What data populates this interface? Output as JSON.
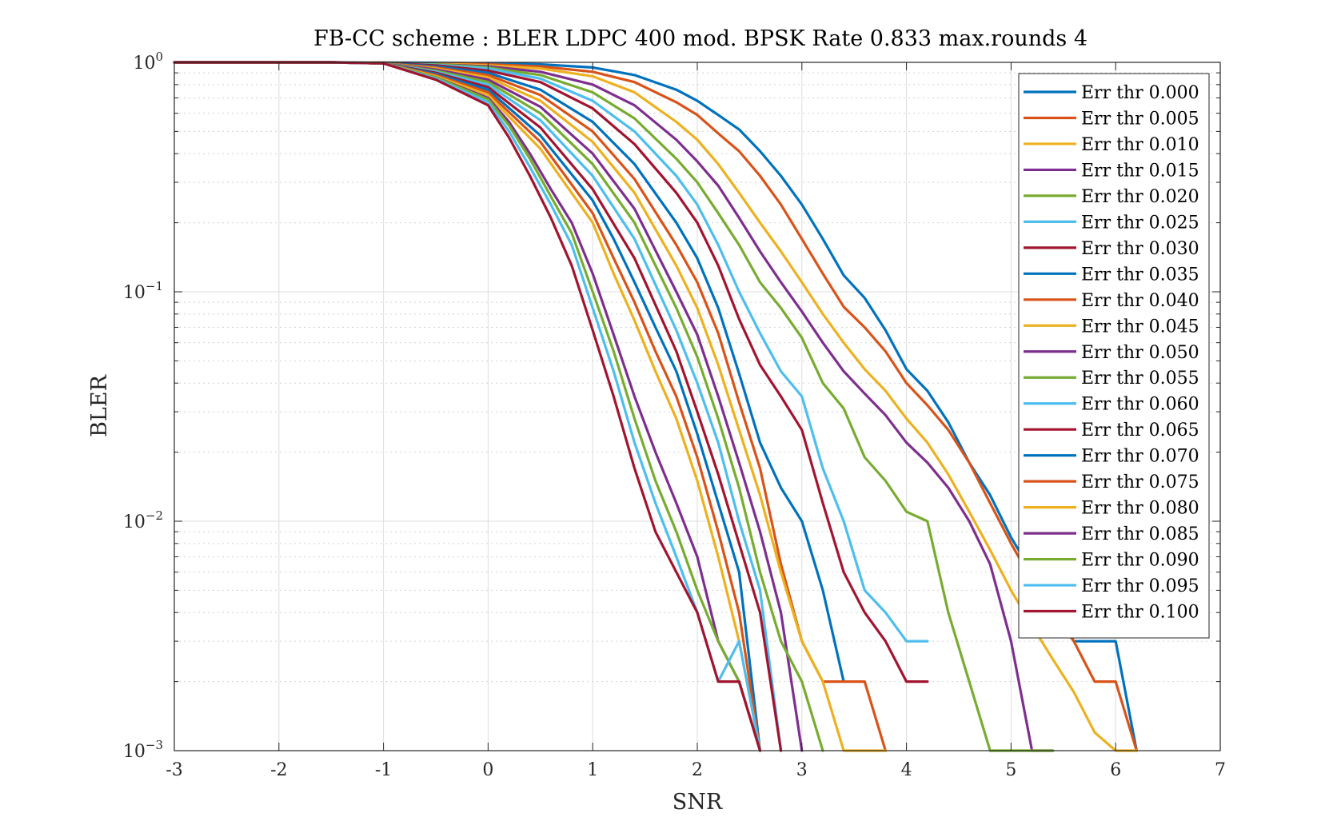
{
  "chart_data": {
    "type": "line",
    "title": "FB-CC scheme : BLER LDPC 400 mod. BPSK Rate 0.833 max.rounds 4",
    "xlabel": "SNR",
    "ylabel": "BLER",
    "xlim": [
      -3,
      7
    ],
    "ylim": [
      0.001,
      1
    ],
    "yscale": "log",
    "grid": true,
    "legend_position": "top-right",
    "x_ticks": [
      {
        "value": -3,
        "label": "-3"
      },
      {
        "value": -2,
        "label": "-2"
      },
      {
        "value": -1,
        "label": "-1"
      },
      {
        "value": 0,
        "label": "0"
      },
      {
        "value": 1,
        "label": "1"
      },
      {
        "value": 2,
        "label": "2"
      },
      {
        "value": 3,
        "label": "3"
      },
      {
        "value": 4,
        "label": "4"
      },
      {
        "value": 5,
        "label": "5"
      },
      {
        "value": 6,
        "label": "6"
      },
      {
        "value": 7,
        "label": "7"
      }
    ],
    "y_ticks": [
      {
        "value": 1,
        "base": "10",
        "exp": "0"
      },
      {
        "value": 0.1,
        "base": "10",
        "exp": "−1"
      },
      {
        "value": 0.01,
        "base": "10",
        "exp": "−2"
      },
      {
        "value": 0.001,
        "base": "10",
        "exp": "−3"
      }
    ],
    "series": [
      {
        "name": "Err thr 0.000",
        "color": "#0072BD",
        "x": [
          -3,
          -2,
          -1.5,
          -1,
          -0.5,
          0,
          0.5,
          1,
          1.4,
          1.8,
          2,
          2.2,
          2.4,
          2.6,
          2.8,
          3,
          3.2,
          3.4,
          3.6,
          3.8,
          4,
          4.2,
          4.4,
          4.6,
          4.8,
          5,
          5.2,
          5.4,
          5.6,
          5.8,
          6,
          6.2
        ],
        "y": [
          1,
          1,
          1,
          0.998,
          0.995,
          0.99,
          0.98,
          0.95,
          0.88,
          0.76,
          0.68,
          0.59,
          0.51,
          0.41,
          0.32,
          0.24,
          0.17,
          0.118,
          0.094,
          0.068,
          0.046,
          0.037,
          0.027,
          0.018,
          0.013,
          0.0085,
          0.006,
          0.0042,
          0.003,
          0.003,
          0.003,
          0.001
        ]
      },
      {
        "name": "Err thr 0.005",
        "color": "#D95319",
        "x": [
          -3,
          -2,
          -1.5,
          -1,
          -0.5,
          0,
          0.5,
          1,
          1.4,
          1.8,
          2,
          2.2,
          2.4,
          2.6,
          2.8,
          3,
          3.2,
          3.4,
          3.6,
          3.8,
          4,
          4.2,
          4.4,
          4.6,
          4.8,
          5,
          5.2,
          5.4,
          5.6,
          5.8,
          6,
          6.2
        ],
        "y": [
          1,
          1,
          1,
          0.997,
          0.99,
          0.98,
          0.96,
          0.91,
          0.82,
          0.67,
          0.59,
          0.49,
          0.41,
          0.32,
          0.24,
          0.17,
          0.12,
          0.086,
          0.07,
          0.055,
          0.04,
          0.032,
          0.025,
          0.018,
          0.012,
          0.008,
          0.0055,
          0.004,
          0.003,
          0.002,
          0.002,
          0.001
        ]
      },
      {
        "name": "Err thr 0.010",
        "color": "#EDB120",
        "x": [
          -3,
          -2,
          -1.5,
          -1,
          -0.5,
          0,
          0.5,
          1,
          1.4,
          1.8,
          2,
          2.2,
          2.4,
          2.6,
          2.8,
          3,
          3.2,
          3.4,
          3.6,
          3.8,
          4,
          4.2,
          4.4,
          4.6,
          4.8,
          5,
          5.2,
          5.4,
          5.6,
          5.8,
          6,
          6.2
        ],
        "y": [
          1,
          1,
          1,
          0.996,
          0.985,
          0.97,
          0.94,
          0.87,
          0.74,
          0.55,
          0.46,
          0.36,
          0.27,
          0.2,
          0.15,
          0.11,
          0.08,
          0.06,
          0.046,
          0.037,
          0.028,
          0.022,
          0.016,
          0.011,
          0.0075,
          0.005,
          0.0035,
          0.0025,
          0.0018,
          0.0012,
          0.001,
          0.001
        ]
      },
      {
        "name": "Err thr 0.015",
        "color": "#7E2F8E",
        "x": [
          -3,
          -2,
          -1.5,
          -1,
          -0.5,
          0,
          0.5,
          1,
          1.4,
          1.8,
          2,
          2.2,
          2.4,
          2.6,
          2.8,
          3,
          3.2,
          3.4,
          3.6,
          3.8,
          4,
          4.2,
          4.4,
          4.6,
          4.8,
          5,
          5.2,
          5.4
        ],
        "y": [
          1,
          1,
          1,
          0.995,
          0.98,
          0.96,
          0.91,
          0.8,
          0.65,
          0.46,
          0.37,
          0.29,
          0.21,
          0.15,
          0.11,
          0.082,
          0.06,
          0.045,
          0.036,
          0.029,
          0.022,
          0.018,
          0.014,
          0.01,
          0.0065,
          0.003,
          0.001,
          0.001
        ]
      },
      {
        "name": "Err thr 0.020",
        "color": "#77AC30",
        "x": [
          -3,
          -2,
          -1.5,
          -1,
          -0.5,
          0,
          0.5,
          1,
          1.4,
          1.8,
          2,
          2.2,
          2.4,
          2.6,
          2.8,
          3,
          3.2,
          3.4,
          3.6,
          3.8,
          4,
          4.2,
          4.4,
          4.6,
          4.8,
          5,
          5.2,
          5.4
        ],
        "y": [
          1,
          1,
          1,
          0.995,
          0.98,
          0.95,
          0.88,
          0.74,
          0.57,
          0.38,
          0.3,
          0.22,
          0.16,
          0.11,
          0.085,
          0.063,
          0.04,
          0.031,
          0.019,
          0.015,
          0.011,
          0.01,
          0.004,
          0.002,
          0.001,
          0.001,
          0.001,
          0.001
        ]
      },
      {
        "name": "Err thr 0.025",
        "color": "#4DBEEE",
        "x": [
          -3,
          -2,
          -1.5,
          -1,
          -0.5,
          0,
          0.5,
          1,
          1.4,
          1.8,
          2,
          2.2,
          2.4,
          2.6,
          2.8,
          3,
          3.2,
          3.4,
          3.6,
          3.8,
          4,
          4.2
        ],
        "y": [
          1,
          1,
          1,
          0.994,
          0.975,
          0.94,
          0.85,
          0.68,
          0.5,
          0.32,
          0.24,
          0.16,
          0.1,
          0.066,
          0.045,
          0.035,
          0.017,
          0.01,
          0.005,
          0.004,
          0.003,
          0.003
        ]
      },
      {
        "name": "Err thr 0.030",
        "color": "#A2142F",
        "x": [
          -3,
          -2,
          -1.5,
          -1,
          -0.5,
          0,
          0.5,
          1,
          1.4,
          1.8,
          2,
          2.2,
          2.4,
          2.6,
          2.8,
          3,
          3.2,
          3.4,
          3.6,
          3.8,
          4,
          4.2
        ],
        "y": [
          1,
          1,
          1,
          0.993,
          0.97,
          0.92,
          0.82,
          0.63,
          0.44,
          0.27,
          0.2,
          0.13,
          0.076,
          0.048,
          0.035,
          0.025,
          0.012,
          0.006,
          0.004,
          0.003,
          0.002,
          0.002
        ]
      },
      {
        "name": "Err thr 0.035",
        "color": "#0072BD",
        "x": [
          -3,
          -2,
          -1.5,
          -1,
          -0.5,
          0,
          0.5,
          1,
          1.4,
          1.8,
          2,
          2.2,
          2.4,
          2.6,
          2.8,
          3,
          3.2,
          3.4
        ],
        "y": [
          1,
          1,
          1,
          0.992,
          0.96,
          0.9,
          0.76,
          0.55,
          0.36,
          0.2,
          0.14,
          0.085,
          0.044,
          0.022,
          0.014,
          0.01,
          0.005,
          0.002
        ]
      },
      {
        "name": "Err thr 0.040",
        "color": "#D95319",
        "x": [
          -3,
          -2,
          -1.5,
          -1,
          -0.5,
          0,
          0.5,
          1,
          1.4,
          1.8,
          2,
          2.2,
          2.4,
          2.6,
          2.8,
          3,
          3.2,
          3.4,
          3.6,
          3.8
        ],
        "y": [
          1,
          1,
          1,
          0.99,
          0.95,
          0.88,
          0.72,
          0.5,
          0.31,
          0.16,
          0.11,
          0.066,
          0.033,
          0.017,
          0.0065,
          0.003,
          0.002,
          0.002,
          0.002,
          0.001
        ]
      },
      {
        "name": "Err thr 0.045",
        "color": "#EDB120",
        "x": [
          -3,
          -2,
          -1.5,
          -1,
          -0.5,
          0,
          0.5,
          1,
          1.4,
          1.8,
          2,
          2.2,
          2.4,
          2.6,
          2.8,
          3,
          3.2,
          3.4,
          3.6,
          3.8
        ],
        "y": [
          1,
          1,
          1,
          0.99,
          0.94,
          0.86,
          0.68,
          0.45,
          0.27,
          0.13,
          0.085,
          0.048,
          0.025,
          0.013,
          0.006,
          0.003,
          0.002,
          0.001,
          0.001,
          0.001
        ]
      },
      {
        "name": "Err thr 0.050",
        "color": "#7E2F8E",
        "x": [
          -3,
          -2,
          -1.5,
          -1,
          -0.5,
          0,
          0.5,
          1,
          1.4,
          1.8,
          2,
          2.2,
          2.4,
          2.6,
          2.8,
          3
        ],
        "y": [
          1,
          1,
          1,
          0.99,
          0.93,
          0.84,
          0.64,
          0.4,
          0.23,
          0.1,
          0.065,
          0.035,
          0.018,
          0.009,
          0.004,
          0.001
        ]
      },
      {
        "name": "Err thr 0.055",
        "color": "#77AC30",
        "x": [
          -3,
          -2,
          -1.5,
          -1,
          -0.5,
          0,
          0.5,
          1,
          1.4,
          1.8,
          2,
          2.2,
          2.4,
          2.6,
          2.8,
          3,
          3.2
        ],
        "y": [
          1,
          1,
          1,
          0.99,
          0.92,
          0.82,
          0.6,
          0.36,
          0.2,
          0.085,
          0.052,
          0.028,
          0.014,
          0.006,
          0.003,
          0.002,
          0.001
        ]
      },
      {
        "name": "Err thr 0.060",
        "color": "#4DBEEE",
        "x": [
          -3,
          -2,
          -1.5,
          -1,
          -0.5,
          0,
          0.5,
          1,
          1.4,
          1.8,
          2,
          2.2,
          2.4,
          2.6,
          2.8
        ],
        "y": [
          1,
          1,
          1,
          0.99,
          0.91,
          0.8,
          0.56,
          0.32,
          0.17,
          0.068,
          0.04,
          0.022,
          0.01,
          0.005,
          0.001
        ]
      },
      {
        "name": "Err thr 0.065",
        "color": "#A2142F",
        "x": [
          -3,
          -2,
          -1.5,
          -1,
          -0.5,
          0,
          0.5,
          1,
          1.4,
          1.8,
          2,
          2.2,
          2.4,
          2.6,
          2.8
        ],
        "y": [
          1,
          1,
          1,
          0.99,
          0.9,
          0.78,
          0.52,
          0.28,
          0.14,
          0.055,
          0.03,
          0.016,
          0.008,
          0.004,
          0.001
        ]
      },
      {
        "name": "Err thr 0.070",
        "color": "#0072BD",
        "x": [
          -3,
          -2,
          -1.5,
          -1,
          -0.5,
          0,
          0.5,
          1,
          1.2,
          1.4,
          1.6,
          1.8,
          2,
          2.2,
          2.4,
          2.6
        ],
        "y": [
          1,
          1,
          1,
          0.99,
          0.89,
          0.76,
          0.48,
          0.25,
          0.17,
          0.11,
          0.07,
          0.045,
          0.024,
          0.012,
          0.006,
          0.001
        ]
      },
      {
        "name": "Err thr 0.075",
        "color": "#D95319",
        "x": [
          -3,
          -2,
          -1.5,
          -1,
          -0.5,
          0,
          0.5,
          1,
          1.2,
          1.4,
          1.6,
          1.8,
          2,
          2.2,
          2.4,
          2.6
        ],
        "y": [
          1,
          1,
          1,
          0.99,
          0.88,
          0.74,
          0.45,
          0.22,
          0.14,
          0.09,
          0.055,
          0.035,
          0.019,
          0.009,
          0.004,
          0.001
        ]
      },
      {
        "name": "Err thr 0.080",
        "color": "#EDB120",
        "x": [
          -3,
          -2,
          -1.5,
          -1,
          -0.5,
          0,
          0.5,
          1,
          1.2,
          1.4,
          1.6,
          1.8,
          2,
          2.2,
          2.4,
          2.6
        ],
        "y": [
          1,
          1,
          1,
          0.99,
          0.87,
          0.72,
          0.42,
          0.2,
          0.12,
          0.075,
          0.045,
          0.028,
          0.015,
          0.007,
          0.003,
          0.001
        ]
      },
      {
        "name": "Err thr 0.085",
        "color": "#7E2F8E",
        "x": [
          -3,
          -2,
          -1.5,
          -1,
          -0.5,
          0,
          0.2,
          0.4,
          0.6,
          0.8,
          1,
          1.2,
          1.4,
          1.6,
          1.8,
          2,
          2.2,
          2.4,
          2.6
        ],
        "y": [
          1,
          1,
          1,
          0.99,
          0.86,
          0.7,
          0.55,
          0.4,
          0.28,
          0.2,
          0.12,
          0.065,
          0.035,
          0.02,
          0.012,
          0.007,
          0.003,
          0.002,
          0.001
        ]
      },
      {
        "name": "Err thr 0.090",
        "color": "#77AC30",
        "x": [
          -3,
          -2,
          -1.5,
          -1,
          -0.5,
          0,
          0.2,
          0.4,
          0.6,
          0.8,
          1,
          1.2,
          1.4,
          1.6,
          1.8,
          2,
          2.2,
          2.4,
          2.6
        ],
        "y": [
          1,
          1,
          1,
          0.99,
          0.86,
          0.69,
          0.53,
          0.38,
          0.26,
          0.18,
          0.1,
          0.055,
          0.028,
          0.015,
          0.009,
          0.005,
          0.003,
          0.002,
          0.001
        ]
      },
      {
        "name": "Err thr 0.095",
        "color": "#4DBEEE",
        "x": [
          -3,
          -2,
          -1.5,
          -1,
          -0.5,
          0,
          0.2,
          0.4,
          0.6,
          0.8,
          1,
          1.2,
          1.4,
          1.6,
          1.8,
          2,
          2.2,
          2.4,
          2.6
        ],
        "y": [
          1,
          1,
          1,
          0.99,
          0.85,
          0.67,
          0.5,
          0.35,
          0.24,
          0.16,
          0.085,
          0.045,
          0.022,
          0.012,
          0.007,
          0.004,
          0.002,
          0.003,
          0.001
        ]
      },
      {
        "name": "Err thr 0.100",
        "color": "#A2142F",
        "x": [
          -3,
          -2,
          -1.5,
          -1,
          -0.5,
          0,
          0.2,
          0.4,
          0.6,
          0.8,
          1,
          1.2,
          1.4,
          1.6,
          1.8,
          2,
          2.2,
          2.4,
          2.6
        ],
        "y": [
          1,
          1,
          1,
          0.99,
          0.84,
          0.65,
          0.47,
          0.32,
          0.21,
          0.13,
          0.068,
          0.035,
          0.017,
          0.009,
          0.006,
          0.004,
          0.002,
          0.002,
          0.001
        ]
      }
    ]
  }
}
